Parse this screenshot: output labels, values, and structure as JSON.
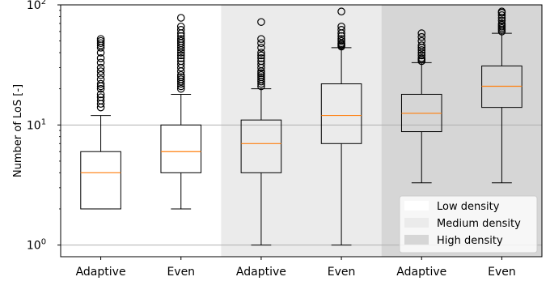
{
  "chart_data": {
    "type": "box",
    "title": "",
    "xlabel": "",
    "ylabel": "Number of LoS [-]",
    "yscale": "log",
    "ylim": [
      0.8,
      100
    ],
    "y_ticks": [
      {
        "value": 1,
        "base": "10",
        "exp": "0"
      },
      {
        "value": 10,
        "base": "10",
        "exp": "1"
      },
      {
        "value": 100,
        "base": "10",
        "exp": "2"
      }
    ],
    "grid": "horizontal",
    "legend": {
      "position": "bottom-right",
      "entries": [
        {
          "label": "Low density",
          "color": "#ffffff"
        },
        {
          "label": "Medium density",
          "color": "#ebebeb"
        },
        {
          "label": "High density",
          "color": "#d6d6d6"
        }
      ]
    },
    "groups": [
      {
        "name": "Low density",
        "color": "#ffffff",
        "categories": [
          0,
          1
        ]
      },
      {
        "name": "Medium density",
        "color": "#ebebeb",
        "categories": [
          2,
          3
        ]
      },
      {
        "name": "High density",
        "color": "#d6d6d6",
        "categories": [
          4,
          5
        ]
      }
    ],
    "categories": [
      "Adaptive",
      "Even",
      "Adaptive",
      "Even",
      "Adaptive",
      "Even"
    ],
    "boxes": [
      {
        "whisker_low": 2,
        "q1": 2,
        "median": 4,
        "q3": 6,
        "whisker_high": 12,
        "outliers": [
          14,
          15,
          16,
          17,
          18,
          20,
          21,
          22,
          24,
          26,
          28,
          30,
          33,
          36,
          40,
          44,
          46,
          48,
          50,
          52
        ]
      },
      {
        "whisker_low": 2,
        "q1": 4,
        "median": 6,
        "q3": 10,
        "whisker_high": 18,
        "outliers": [
          20,
          21,
          22,
          23,
          24,
          25,
          26,
          28,
          30,
          32,
          34,
          36,
          38,
          40,
          42,
          44,
          46,
          48,
          50,
          52,
          55,
          58,
          62,
          66,
          78
        ]
      },
      {
        "whisker_low": 1,
        "q1": 4,
        "median": 7,
        "q3": 11,
        "whisker_high": 20,
        "outliers": [
          21,
          22,
          23,
          24,
          25,
          26,
          27,
          28,
          30,
          32,
          34,
          36,
          38,
          40,
          44,
          48,
          52,
          72
        ]
      },
      {
        "whisker_low": 1,
        "q1": 7,
        "median": 12,
        "q3": 22,
        "whisker_high": 44,
        "outliers": [
          45,
          46,
          47,
          48,
          50,
          52,
          55,
          58,
          62,
          66,
          88
        ]
      },
      {
        "whisker_low": 3.3,
        "q1": 8.8,
        "median": 12.5,
        "q3": 18,
        "whisker_high": 33,
        "outliers": [
          34,
          35,
          36,
          38,
          40,
          42,
          44,
          46,
          50,
          54,
          58
        ]
      },
      {
        "whisker_low": 3.3,
        "q1": 14,
        "median": 21,
        "q3": 31,
        "whisker_high": 58,
        "outliers": [
          60,
          62,
          64,
          66,
          68,
          70,
          74,
          78,
          82,
          86,
          88
        ]
      }
    ],
    "colors": {
      "median": "#ff7f0e",
      "box": "#000000",
      "grid": "#b0b0b0"
    }
  }
}
